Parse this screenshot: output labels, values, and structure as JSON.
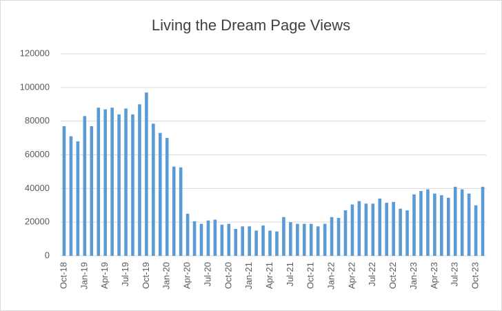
{
  "chart_data": {
    "type": "bar",
    "title": "Living the Dream Page Views",
    "categories": [
      "Oct-18",
      null,
      null,
      "Jan-19",
      null,
      null,
      "Apr-19",
      null,
      null,
      "Jul-19",
      null,
      null,
      "Oct-19",
      null,
      null,
      "Jan-20",
      null,
      null,
      "Apr-20",
      null,
      null,
      "Jul-20",
      null,
      null,
      "Oct-20",
      null,
      null,
      "Jan-21",
      null,
      null,
      "Apr-21",
      null,
      null,
      "Jul-21",
      null,
      null,
      "Oct-21",
      null,
      null,
      "Jan-22",
      null,
      null,
      "Apr-22",
      null,
      null,
      "Jul-22",
      null,
      null,
      "Oct-22",
      null,
      null,
      "Jan-23",
      null,
      null,
      "Apr-23",
      null,
      null,
      "Jul-23",
      null,
      null,
      "Oct-23",
      null
    ],
    "values": [
      77000,
      71000,
      68000,
      83000,
      77000,
      88000,
      87000,
      88000,
      84000,
      87500,
      84000,
      90000,
      97000,
      78500,
      73000,
      70000,
      53000,
      52500,
      25000,
      20500,
      19000,
      21000,
      21500,
      18500,
      19000,
      16000,
      17500,
      17500,
      15000,
      18000,
      15000,
      14500,
      23000,
      20000,
      19000,
      19000,
      19000,
      17500,
      19000,
      23000,
      22500,
      27000,
      30500,
      32500,
      31000,
      31000,
      34000,
      31500,
      32000,
      28000,
      27000,
      36500,
      38500,
      39500,
      37000,
      36000,
      34500,
      41000,
      39500,
      37000,
      30000,
      41000
    ],
    "color": "#5b9bd5",
    "ylim": [
      0,
      120000
    ],
    "yticks": [
      0,
      20000,
      40000,
      60000,
      80000,
      100000,
      120000
    ],
    "grid": true
  }
}
